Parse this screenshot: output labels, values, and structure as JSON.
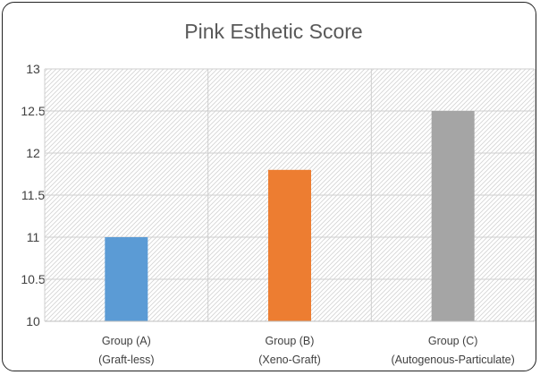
{
  "chart_data": {
    "type": "bar",
    "title": "Pink Esthetic Score",
    "xlabel": "",
    "ylabel": "",
    "categories": [
      [
        "Group (A)",
        "(Graft-less)"
      ],
      [
        "Group (B)",
        "(Xeno-Graft)"
      ],
      [
        "Group (C)",
        "(Autogenous-Particulate)"
      ]
    ],
    "values": [
      11,
      11.8,
      12.5
    ],
    "colors": [
      "#5b9bd5",
      "#ed7d31",
      "#a5a5a5"
    ],
    "ylim": [
      10,
      13
    ],
    "yticks": [
      "10",
      "10.5",
      "11",
      "11.5",
      "12",
      "12.5",
      "13"
    ],
    "grid": true,
    "legend": "none"
  }
}
